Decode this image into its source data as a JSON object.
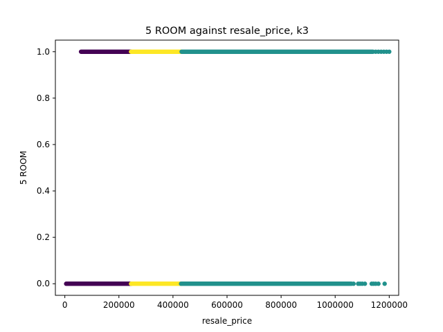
{
  "chart_data": {
    "type": "scatter",
    "title": "5 ROOM against resale_price, k3",
    "xlabel": "resale_price",
    "ylabel": "5 ROOM",
    "xlim": [
      -35000,
      1235000
    ],
    "ylim": [
      -0.05,
      1.05
    ],
    "xticks": [
      0,
      200000,
      400000,
      600000,
      800000,
      1000000,
      1200000
    ],
    "xtick_labels": [
      "0",
      "200000",
      "400000",
      "600000",
      "800000",
      "1000000",
      "1200000"
    ],
    "yticks": [
      0.0,
      0.2,
      0.4,
      0.6,
      0.8,
      1.0
    ],
    "ytick_labels": [
      "0.0",
      "0.2",
      "0.4",
      "0.6",
      "0.8",
      "1.0"
    ],
    "grid": false,
    "legend": "none",
    "clusters": [
      {
        "color": "#440154",
        "segments": [
          {
            "y": 1,
            "x_min": 60000,
            "x_max": 245000
          },
          {
            "y": 0,
            "x_min": 5000,
            "x_max": 245000
          }
        ],
        "points": []
      },
      {
        "color": "#fde725",
        "segments": [
          {
            "y": 1,
            "x_min": 245000,
            "x_max": 432000
          },
          {
            "y": 0,
            "x_min": 245000,
            "x_max": 430000
          }
        ],
        "points": []
      },
      {
        "color": "#21918c",
        "segments": [
          {
            "y": 1,
            "x_min": 432000,
            "x_max": 1140000
          },
          {
            "y": 0,
            "x_min": 430000,
            "x_max": 1060000
          }
        ],
        "points": [
          {
            "x": 1150000,
            "y": 1
          },
          {
            "x": 1160000,
            "y": 1
          },
          {
            "x": 1170000,
            "y": 1
          },
          {
            "x": 1180000,
            "y": 1
          },
          {
            "x": 1190000,
            "y": 1
          },
          {
            "x": 1200000,
            "y": 1
          },
          {
            "x": 1068000,
            "y": 0
          },
          {
            "x": 1085000,
            "y": 0
          },
          {
            "x": 1092000,
            "y": 0
          },
          {
            "x": 1100000,
            "y": 0
          },
          {
            "x": 1110000,
            "y": 0
          },
          {
            "x": 1135000,
            "y": 0
          },
          {
            "x": 1142000,
            "y": 0
          },
          {
            "x": 1150000,
            "y": 0
          },
          {
            "x": 1160000,
            "y": 0
          },
          {
            "x": 1183000,
            "y": 0
          }
        ]
      }
    ]
  }
}
